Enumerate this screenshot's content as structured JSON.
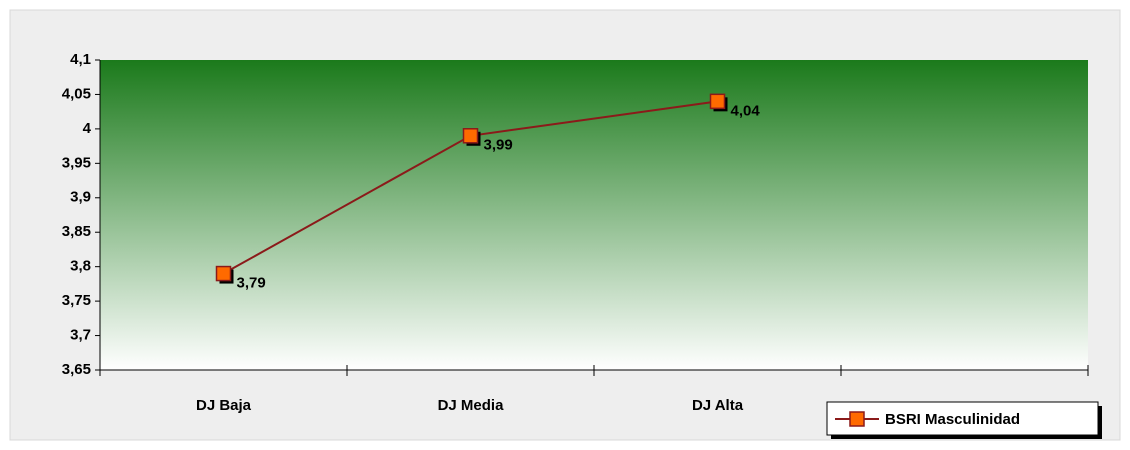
{
  "chart_data": {
    "type": "line",
    "categories": [
      "DJ Baja",
      "DJ Media",
      "DJ Alta",
      null
    ],
    "series": [
      {
        "name": "BSRI Masculinidad",
        "color": "#8b1a1a",
        "marker_color": "#ff6a00",
        "values": [
          3.79,
          3.99,
          4.04,
          null
        ],
        "value_labels": [
          "3,79",
          "3,99",
          "4,04",
          null
        ]
      }
    ],
    "ylim": [
      3.65,
      4.1
    ],
    "yticks": [
      {
        "value": 3.65,
        "label": "3,65"
      },
      {
        "value": 3.7,
        "label": "3,7"
      },
      {
        "value": 3.75,
        "label": "3,75"
      },
      {
        "value": 3.8,
        "label": "3,8"
      },
      {
        "value": 3.85,
        "label": "3,85"
      },
      {
        "value": 3.9,
        "label": "3,9"
      },
      {
        "value": 3.95,
        "label": "3,95"
      },
      4,
      {
        "value": 4.05,
        "label": "4,05"
      },
      {
        "value": 4.1,
        "label": "4,1"
      }
    ],
    "legend": "bottom-right"
  }
}
